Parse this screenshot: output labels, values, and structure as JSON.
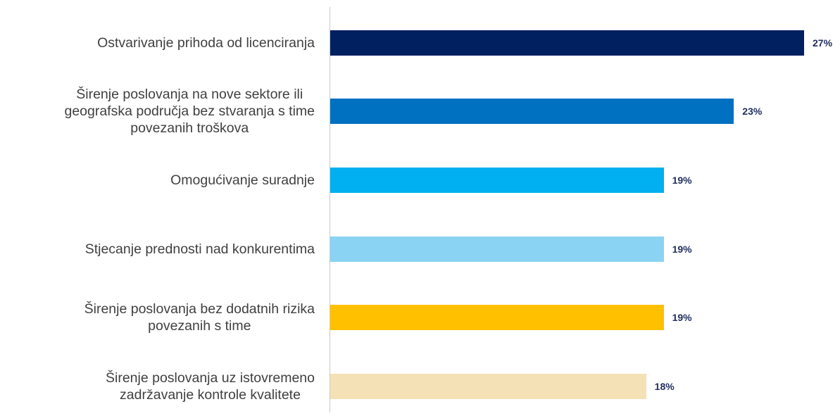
{
  "chart_data": {
    "type": "bar",
    "orientation": "horizontal",
    "categories": [
      "Ostvarivanje prihoda od licenciranja",
      "Širenje poslovanja na nove sektore ili\ngeografska područja bez stvaranja s time\npovezanih troškova",
      "Omogućivanje suradnje",
      "Stjecanje prednosti nad konkurentima",
      "Širenje poslovanja bez dodatnih rizika\npovezanih s time",
      "Širenje poslovanja uz istovremeno\nzadržavanje kontrole kvalitete"
    ],
    "values": [
      27,
      23,
      19,
      19,
      19,
      18
    ],
    "value_labels": [
      "27%",
      "23%",
      "19%",
      "19%",
      "19%",
      "18%"
    ],
    "colors": [
      "#002060",
      "#0070c0",
      "#00b0f0",
      "#8ad3f2",
      "#ffc000",
      "#f5e1b6"
    ]
  }
}
